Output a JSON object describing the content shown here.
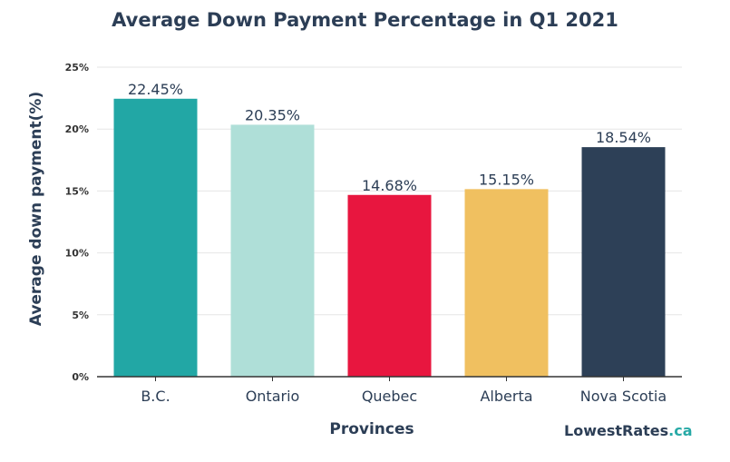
{
  "chart_data": {
    "type": "bar",
    "title": "Average Down Payment Percentage in Q1 2021",
    "xlabel": "Provinces",
    "ylabel": "Average down payment(%)",
    "categories": [
      "B.C.",
      "Ontario",
      "Quebec",
      "Alberta",
      "Nova Scotia"
    ],
    "values": [
      22.45,
      20.35,
      14.68,
      15.15,
      18.54
    ],
    "value_labels": [
      "22.45%",
      "20.35%",
      "14.68%",
      "15.15%",
      "18.54%"
    ],
    "colors": [
      "#22a7a5",
      "#afdfd8",
      "#e8163f",
      "#f0c060",
      "#2d4057"
    ],
    "ylim": [
      0,
      25
    ],
    "yticks": [
      0,
      5,
      10,
      15,
      20,
      25
    ],
    "ytick_labels": [
      "0%",
      "5%",
      "10%",
      "15%",
      "20%",
      "25%"
    ],
    "grid": true,
    "legend": "none"
  },
  "branding": {
    "name": "LowestRates",
    "suffix": ".ca"
  }
}
